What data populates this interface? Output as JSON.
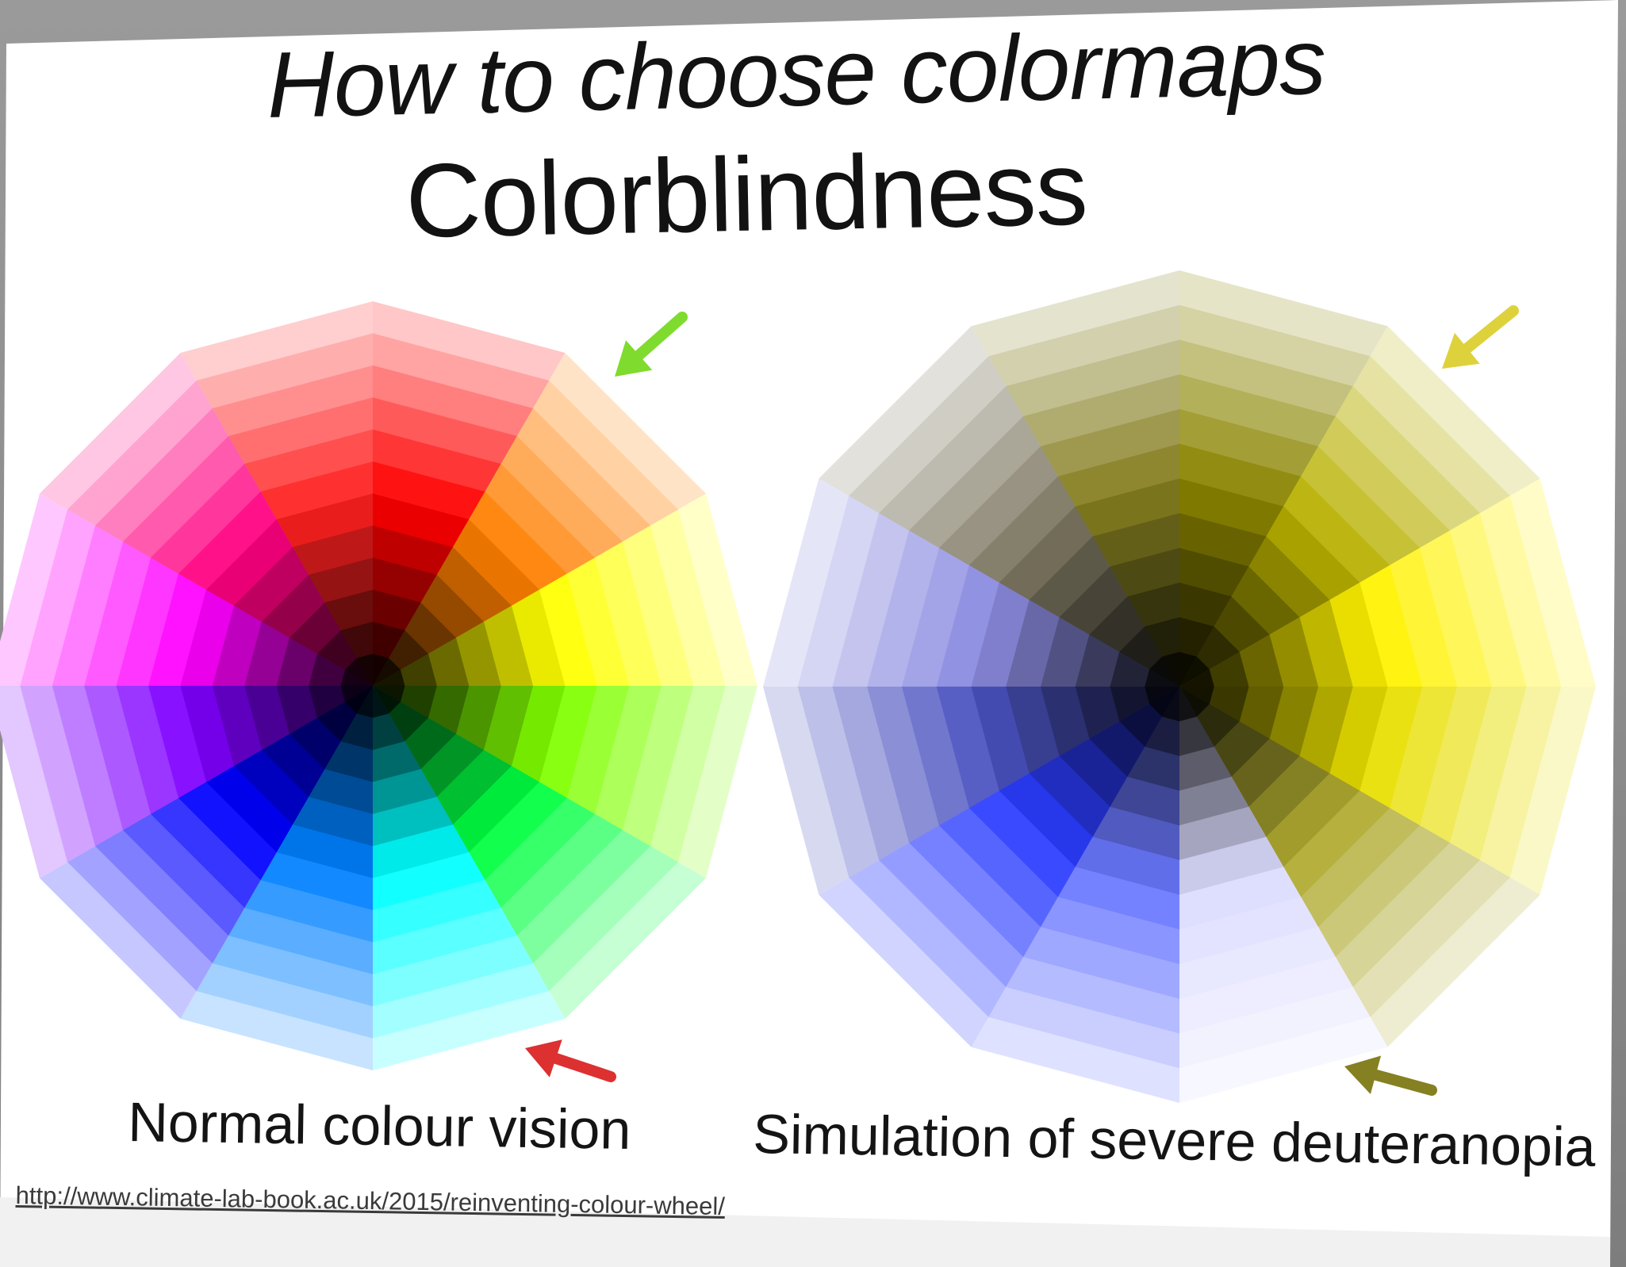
{
  "slide": {
    "subtitle": "How to choose colormaps",
    "title": "Colorblindness",
    "source_url": "http://www.climate-lab-book.ac.uk/2015/reinventing-colour-wheel/"
  },
  "wheels": [
    {
      "caption": "Normal colour vision",
      "hues": [
        "#ff0000",
        "#ff7f00",
        "#ffff00",
        "#80ff00",
        "#00ff40",
        "#00ffff",
        "#0080ff",
        "#0000ff",
        "#7f00ff",
        "#ff00ff",
        "#ff0080",
        "#ff2020"
      ],
      "arrows": [
        {
          "color": "#7fdc2e",
          "label": "green-arrow"
        },
        {
          "color": "#dd3030",
          "label": "red-arrow"
        }
      ]
    },
    {
      "caption": "Simulation of severe deuteranopia",
      "hues": [
        "#8a8400",
        "#b8b000",
        "#fff200",
        "#e8df00",
        "#b0aa30",
        "#dcdcff",
        "#6a78ff",
        "#2a3cff",
        "#4a52c0",
        "#8a8ae0",
        "#7c7660",
        "#857e20"
      ],
      "arrows": [
        {
          "color": "#ded23c",
          "label": "yellow-arrow"
        },
        {
          "color": "#858022",
          "label": "olive-arrow"
        }
      ]
    }
  ],
  "colors": {
    "slide_background": "#ffffff",
    "backdrop": "#8f8f8f",
    "text": "#121212"
  }
}
